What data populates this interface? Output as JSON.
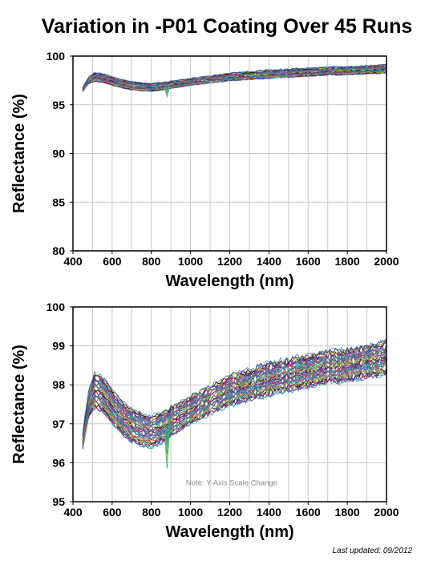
{
  "page": {
    "title": "Variation in -P01 Coating Over 45 Runs",
    "footer": "Last updated: 09/2012"
  },
  "chart_data": [
    {
      "type": "line",
      "title": "Variation in -P01 Coating Over 45 Runs",
      "xlabel": "Wavelength (nm)",
      "ylabel": "Reflectance (%)",
      "xlim": [
        400,
        2000
      ],
      "ylim": [
        80,
        100
      ],
      "x_ticks": [
        400,
        600,
        800,
        1000,
        1200,
        1400,
        1600,
        1800,
        2000
      ],
      "y_ticks": [
        80,
        85,
        90,
        95,
        100
      ],
      "y_tick_labels": [
        "80",
        "85",
        "90",
        "95",
        "100"
      ],
      "grid": true,
      "series_count": 45,
      "baseline": {
        "x": [
          450,
          480,
          510,
          550,
          600,
          650,
          700,
          750,
          800,
          850,
          880,
          900,
          950,
          1000,
          1100,
          1200,
          1300,
          1400,
          1500,
          1600,
          1700,
          1800,
          1900,
          2000
        ],
        "y": [
          96.6,
          97.5,
          97.85,
          97.75,
          97.45,
          97.15,
          96.95,
          96.85,
          96.8,
          96.9,
          96.95,
          97.05,
          97.2,
          97.35,
          97.6,
          97.85,
          98.0,
          98.15,
          98.25,
          98.35,
          98.45,
          98.5,
          98.6,
          98.7
        ]
      },
      "spread": {
        "x": [
          450,
          510,
          800,
          1000,
          1400,
          2000
        ],
        "range": [
          0.4,
          0.9,
          0.8,
          0.7,
          0.8,
          0.8
        ]
      }
    },
    {
      "type": "line",
      "xlabel": "Wavelength (nm)",
      "ylabel": "Reflectance (%)",
      "xlim": [
        400,
        2000
      ],
      "ylim": [
        95,
        100
      ],
      "x_ticks": [
        400,
        600,
        800,
        1000,
        1200,
        1400,
        1600,
        1800,
        2000
      ],
      "y_ticks": [
        95,
        96,
        97,
        98,
        99,
        100
      ],
      "y_tick_labels": [
        "95",
        "96",
        "97",
        "98",
        "99",
        "100"
      ],
      "grid": true,
      "annotation": "Note: Y-Axis Scale Change",
      "series_count": 45
    }
  ],
  "series_colors": [
    "#1f9e9a",
    "#2aa8a0",
    "#c2187d",
    "#6a2c91",
    "#2d3e9e",
    "#8a1c3c",
    "#d3e01c",
    "#1a1a1a",
    "#3b7bd6",
    "#8dbf3f",
    "#e07b2a",
    "#5fbf8f",
    "#b03a86",
    "#4a4a9e",
    "#0e8f6e",
    "#7e57c2",
    "#2b6cb0",
    "#c0392b"
  ]
}
